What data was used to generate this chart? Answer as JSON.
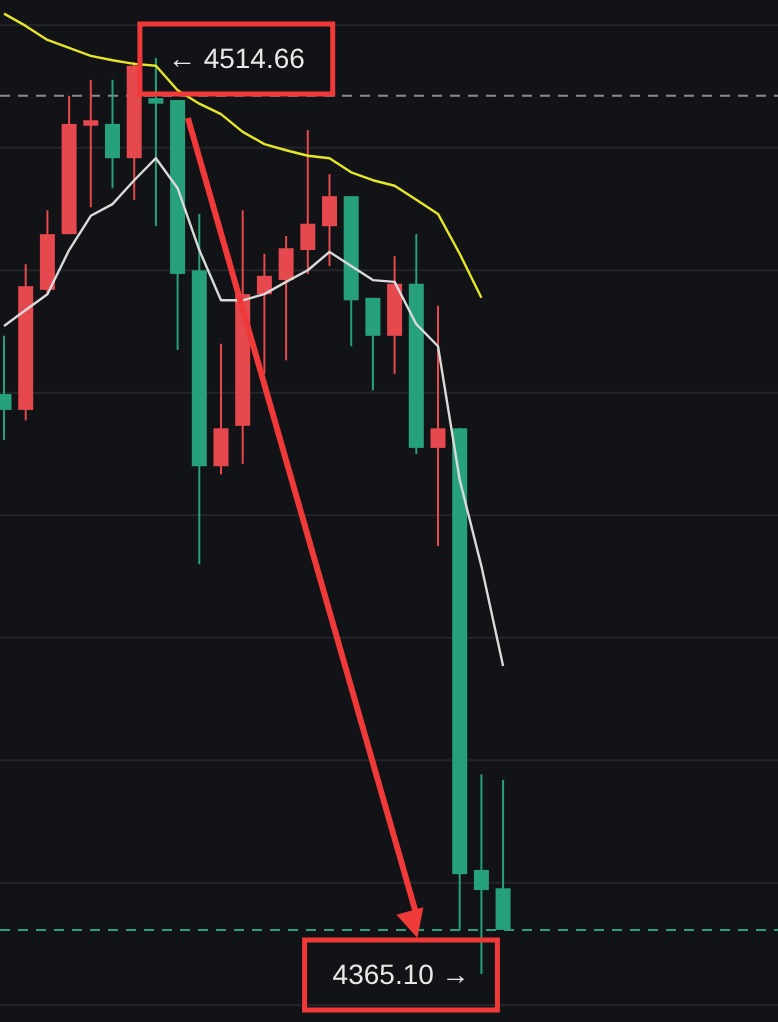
{
  "chart_data": {
    "type": "candlestick",
    "categories": [
      null,
      null,
      null,
      null,
      null,
      null,
      null,
      null,
      null,
      null,
      null,
      null,
      null,
      null,
      null,
      null,
      null,
      null,
      null,
      null,
      null,
      null,
      null,
      null
    ],
    "ohlc": [
      [
        4459.8,
        4469.3,
        4452.3,
        4457.2
      ],
      [
        4457.2,
        4481.0,
        4455.5,
        4477.4
      ],
      [
        4476.8,
        4489.8,
        4476.1,
        4485.9
      ],
      [
        4485.9,
        4508.5,
        4485.9,
        4503.9
      ],
      [
        4503.6,
        4511.1,
        4490.3,
        4504.5
      ],
      [
        4503.9,
        4511.1,
        4493.4,
        4498.3
      ],
      [
        4498.3,
        4514.0,
        4491.5,
        4513.4
      ],
      [
        4508.1,
        4514.66,
        4487.2,
        4507.2
      ],
      [
        4507.8,
        4507.8,
        4467.0,
        4479.4
      ],
      [
        4480.0,
        4489.2,
        4432.0,
        4448.0
      ],
      [
        4448.0,
        4468.0,
        4446.7,
        4454.2
      ],
      [
        4454.6,
        4489.8,
        4448.4,
        4476.1
      ],
      [
        4476.1,
        4482.7,
        4463.1,
        4479.1
      ],
      [
        4478.4,
        4485.6,
        4465.3,
        4483.6
      ],
      [
        4483.3,
        4502.9,
        4479.4,
        4487.6
      ],
      [
        4487.2,
        4495.7,
        4480.7,
        4492.1
      ],
      [
        4492.1,
        4492.1,
        4467.6,
        4475.1
      ],
      [
        4475.5,
        4475.5,
        4460.4,
        4469.3
      ],
      [
        4469.3,
        4482.3,
        4463.1,
        4477.8
      ],
      [
        4477.8,
        4485.9,
        4450.0,
        4451.0
      ],
      [
        4451.0,
        4474.2,
        4435.0,
        4454.2
      ],
      [
        4454.2,
        4454.2,
        4372.3,
        4381.4
      ],
      [
        4382.1,
        4397.7,
        4365.1,
        4378.8
      ],
      [
        4379.1,
        4396.8,
        4372.3,
        4372.3
      ]
    ],
    "colors": [
      "#26a17b",
      "#e5484d",
      "#e5484d",
      "#e5484d",
      "#e5484d",
      "#26a17b",
      "#e5484d",
      "#26a17b",
      "#26a17b",
      "#26a17b",
      "#e5484d",
      "#e5484d",
      "#e5484d",
      "#e5484d",
      "#e5484d",
      "#e5484d",
      "#26a17b",
      "#26a17b",
      "#e5484d",
      "#26a17b",
      "#e5484d",
      "#26a17b",
      "#26a17b",
      "#26a17b"
    ],
    "series": [
      {
        "type": "line",
        "color": "#d9d9d9",
        "values": [
          4470.9,
          4473.5,
          4476.1,
          4483.3,
          4488.9,
          4490.8,
          4494.7,
          4498.3,
          4493.4,
          4483.3,
          4475.1,
          4475.1,
          4476.1,
          4478.1,
          4480.0,
          4483.0,
          4480.7,
          4478.4,
          4478.1,
          4471.2,
          4467.6,
          4445.8,
          4431.7,
          4415.4
        ]
      },
      {
        "type": "line",
        "color": "#e5e52a",
        "values": [
          4521.9,
          4519.9,
          4517.6,
          4516.3,
          4515.0,
          4514.3,
          4513.7,
          4513.4,
          4509.4,
          4507.2,
          4505.5,
          4502.6,
          4500.6,
          4499.6,
          4498.7,
          4498.3,
          4496.0,
          4494.7,
          4493.8,
          4491.5,
          4489.2,
          4482.7,
          4475.5,
          null
        ]
      }
    ],
    "yticks": [
      {
        "value": 4360,
        "label": null
      },
      {
        "value": 4380,
        "label": null
      },
      {
        "value": 4400,
        "label": null
      },
      {
        "value": 4420,
        "label": null
      },
      {
        "value": 4440,
        "label": null
      },
      {
        "value": 4460,
        "label": null
      },
      {
        "value": 4480,
        "label": null
      },
      {
        "value": 4500,
        "label": null
      },
      {
        "value": 4520,
        "label": null
      }
    ],
    "grid": "y",
    "marker": "none",
    "line_style": "solid",
    "ref_lines": [
      {
        "axis": "y",
        "value": 4372.3,
        "color": "#26a17b",
        "line_style": "dashed"
      },
      {
        "axis": "y",
        "value": 4508.5,
        "color": "#8a8a8a",
        "line_style": "dashed"
      }
    ],
    "annotations": [
      "← 4514.66",
      "4365.10 →"
    ]
  }
}
